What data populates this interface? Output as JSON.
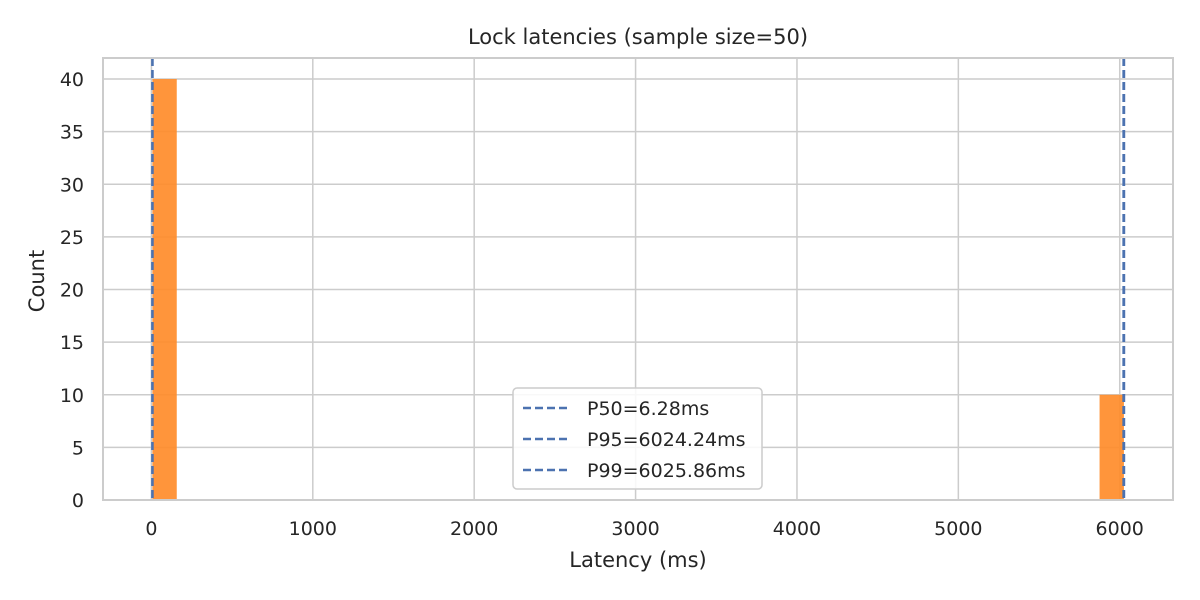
{
  "chart_data": {
    "type": "bar",
    "title": "Lock latencies (sample size=50)",
    "xlabel": "Latency (ms)",
    "ylabel": "Count",
    "xlim": [
      -300,
      6330
    ],
    "ylim": [
      0,
      42
    ],
    "x_ticks": [
      0,
      1000,
      2000,
      3000,
      4000,
      5000,
      6000
    ],
    "x_tick_labels": [
      "0",
      "1000",
      "2000",
      "3000",
      "4000",
      "5000",
      "6000"
    ],
    "y_ticks": [
      0,
      5,
      10,
      15,
      20,
      25,
      30,
      35,
      40
    ],
    "y_tick_labels": [
      "0",
      "5",
      "10",
      "15",
      "20",
      "25",
      "30",
      "35",
      "40"
    ],
    "grid": true,
    "bars": [
      {
        "x_start": 6.28,
        "x_end": 157.0,
        "count": 40
      },
      {
        "x_start": 5875.0,
        "x_end": 6025.86,
        "count": 10
      }
    ],
    "reference_lines": [
      {
        "label": "P50=6.28ms",
        "x": 6.28
      },
      {
        "label": "P95=6024.24ms",
        "x": 6024.24
      },
      {
        "label": "P99=6025.86ms",
        "x": 6025.86
      }
    ],
    "legend_position": "bottom-center",
    "colors": {
      "bar": "#ff8c2a",
      "reference_line": "#4c72b0",
      "grid": "#cccccc",
      "text": "#262626"
    }
  }
}
